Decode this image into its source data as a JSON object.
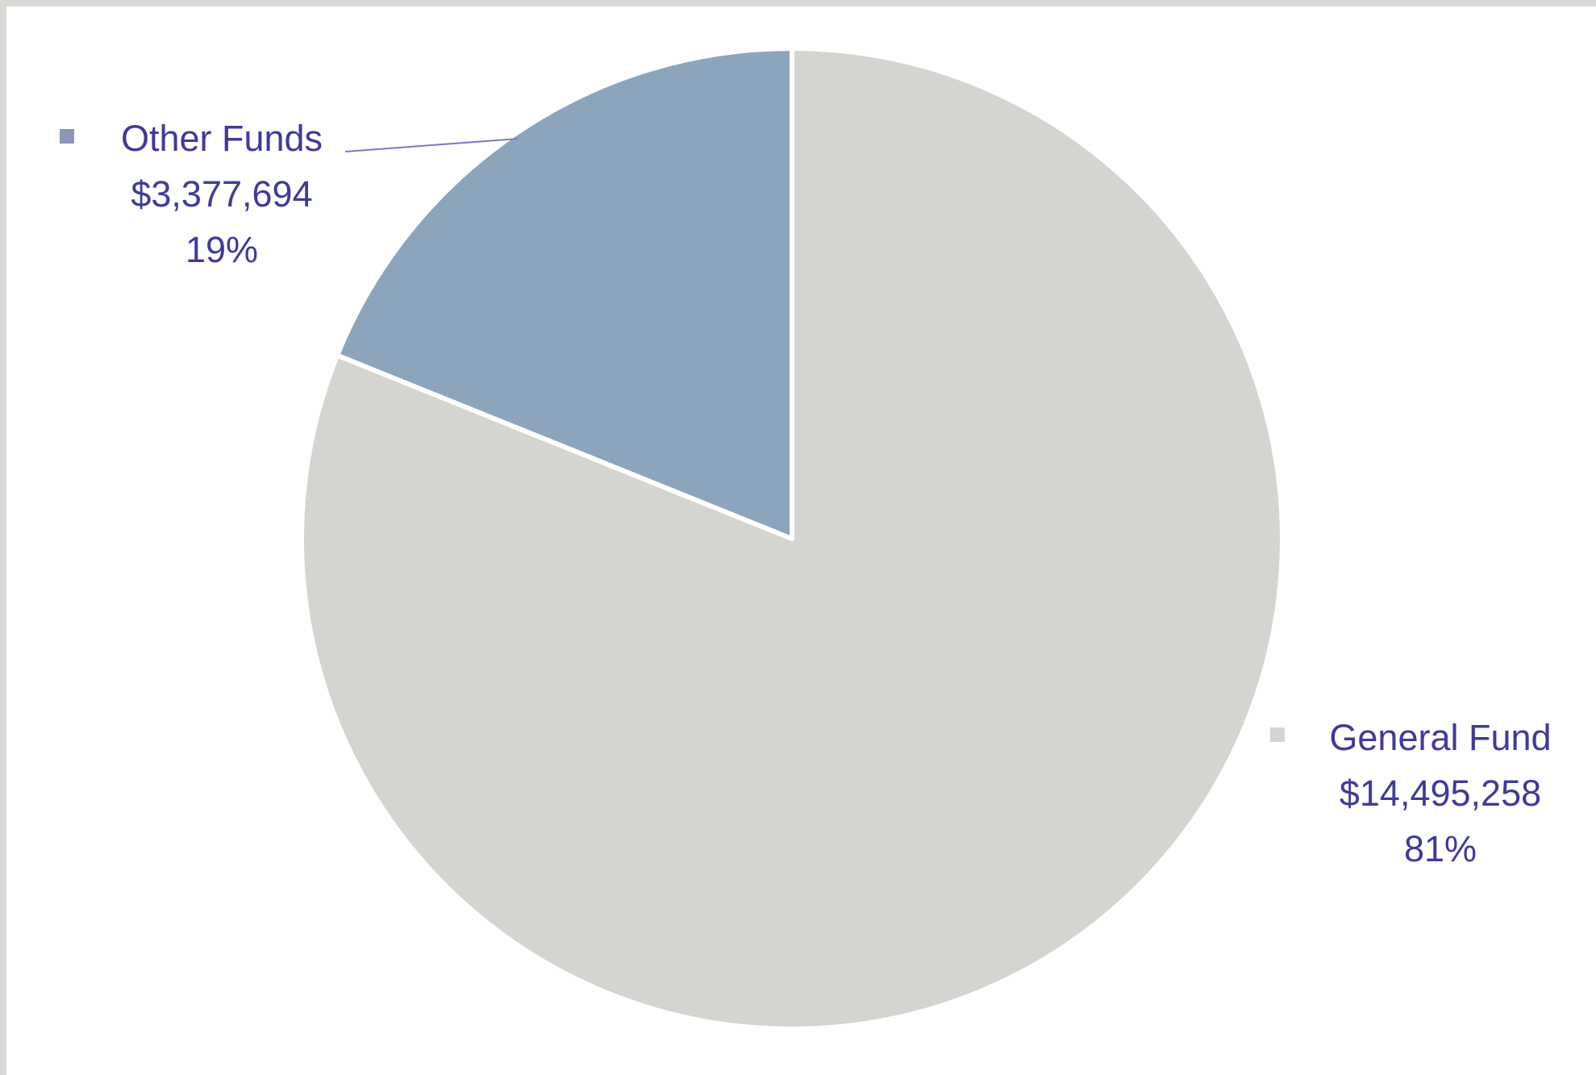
{
  "chart_data": {
    "type": "pie",
    "start_angle_deg": 0,
    "direction": "clockwise",
    "label_color": "#3f3a9a",
    "separator_color": "#ffffff",
    "slices": [
      {
        "label": "General Fund",
        "value": 14495258,
        "value_label": "$14,495,258",
        "percent": 81,
        "percent_label": "81%",
        "color": "#d4d4d1"
      },
      {
        "label": "Other Funds",
        "value": 3377694,
        "value_label": "$3,377,694",
        "percent": 19,
        "percent_label": "19%",
        "color": "#8ca5bd"
      }
    ]
  }
}
